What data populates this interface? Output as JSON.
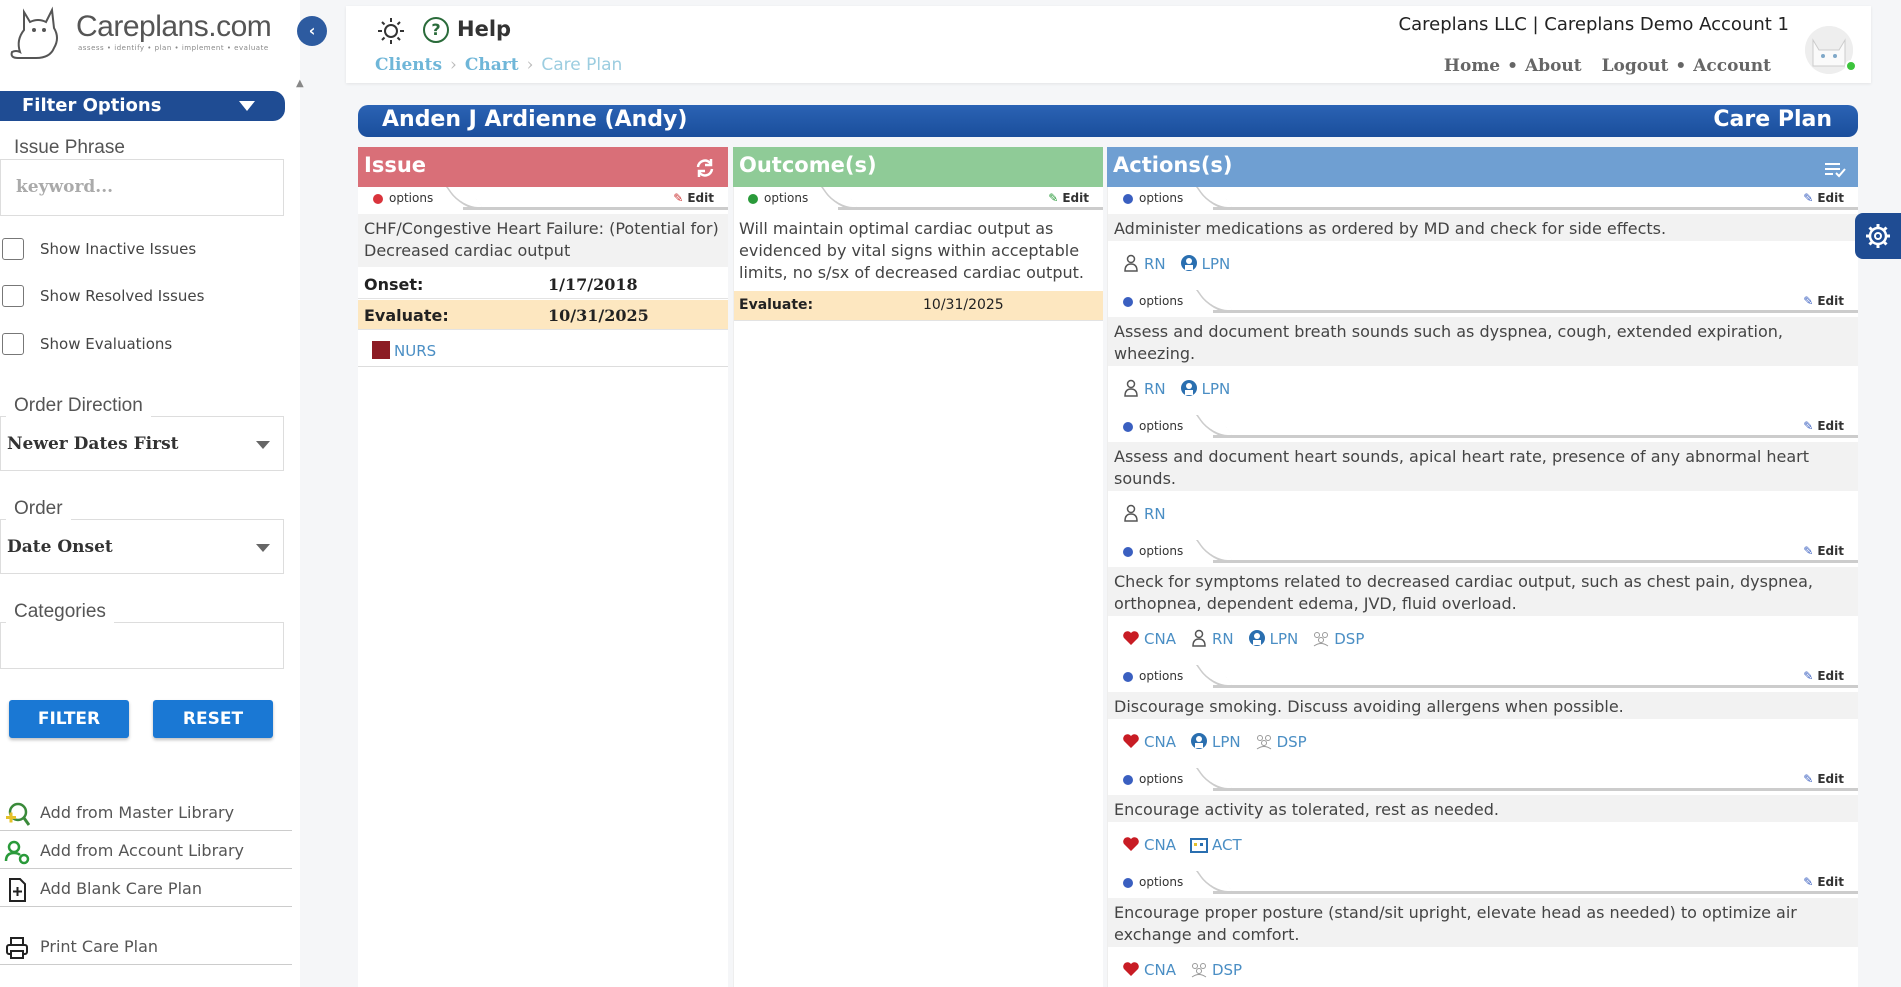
{
  "app": {
    "logo_text": "Careplans.com",
    "logo_tagline": "assess • identify • plan • implement • evaluate"
  },
  "sidebar": {
    "filter_title": "Filter Options",
    "issue_phrase_label": "Issue Phrase",
    "keyword_placeholder": "keyword...",
    "checkboxes": [
      {
        "label": "Show Inactive Issues",
        "checked": false
      },
      {
        "label": "Show Resolved Issues",
        "checked": false
      },
      {
        "label": "Show Evaluations",
        "checked": false
      }
    ],
    "order_direction_label": "Order Direction",
    "order_direction_value": "Newer Dates First",
    "order_label": "Order",
    "order_value": "Date Onset",
    "categories_label": "Categories",
    "filter_button": "FILTER",
    "reset_button": "RESET",
    "links": [
      {
        "label": "Add from Master Library",
        "icon": "search-plus-icon"
      },
      {
        "label": "Add from Account Library",
        "icon": "user-gear-icon"
      },
      {
        "label": "Add Blank Care Plan",
        "icon": "file-plus-icon"
      },
      {
        "label": "Print Care Plan",
        "icon": "printer-icon"
      }
    ]
  },
  "header": {
    "help_label": "Help",
    "breadcrumb": [
      "Clients",
      "Chart",
      "Care Plan"
    ],
    "account_name": "Careplans LLC | Careplans Demo Account 1",
    "nav": [
      "Home",
      "About",
      "Logout",
      "Account"
    ]
  },
  "care_plan": {
    "client_name": "Anden J Ardienne (Andy)",
    "title": "Care Plan",
    "columns": {
      "issue": "Issue",
      "outcome": "Outcome(s)",
      "actions": "Actions(s)"
    },
    "options_label": "options",
    "edit_label": "Edit",
    "issue": {
      "text": "CHF/Congestive Heart Failure: (Potential for) Decreased cardiac output",
      "onset_label": "Onset:",
      "onset_value": "1/17/2018",
      "evaluate_label": "Evaluate:",
      "evaluate_value": "10/31/2025",
      "discipline": "NURS"
    },
    "outcome": {
      "text": "Will maintain optimal cardiac output as evidenced by vital signs within acceptable limits, no s/sx of decreased cardiac output.",
      "evaluate_label": "Evaluate:",
      "evaluate_value": "10/31/2025"
    },
    "actions": [
      {
        "text": "Administer medications as ordered by MD and check for side effects.",
        "roles": [
          "RN",
          "LPN"
        ]
      },
      {
        "text": "Assess and document breath sounds such as dyspnea, cough, extended expiration, wheezing.",
        "roles": [
          "RN",
          "LPN"
        ]
      },
      {
        "text": "Assess and document heart sounds, apical heart rate, presence of any abnormal heart sounds.",
        "roles": [
          "RN"
        ]
      },
      {
        "text": "Check for symptoms related to decreased cardiac output, such as chest pain, dyspnea, orthopnea, dependent edema, JVD, fluid overload.",
        "roles": [
          "CNA",
          "RN",
          "LPN",
          "DSP"
        ]
      },
      {
        "text": "Discourage smoking. Discuss avoiding allergens when possible.",
        "roles": [
          "CNA",
          "LPN",
          "DSP"
        ]
      },
      {
        "text": "Encourage activity as tolerated, rest as needed.",
        "roles": [
          "CNA",
          "ACT"
        ]
      },
      {
        "text": "Encourage proper posture (stand/sit upright, elevate head as needed) to optimize air exchange and comfort.",
        "roles": [
          "CNA",
          "DSP"
        ]
      }
    ]
  },
  "colors": {
    "primary": "#1f4c93",
    "issue": "#d96f78",
    "outcome": "#8fcb97",
    "actions": "#6f9fd2",
    "evaluate_bg": "#fde7c0"
  }
}
